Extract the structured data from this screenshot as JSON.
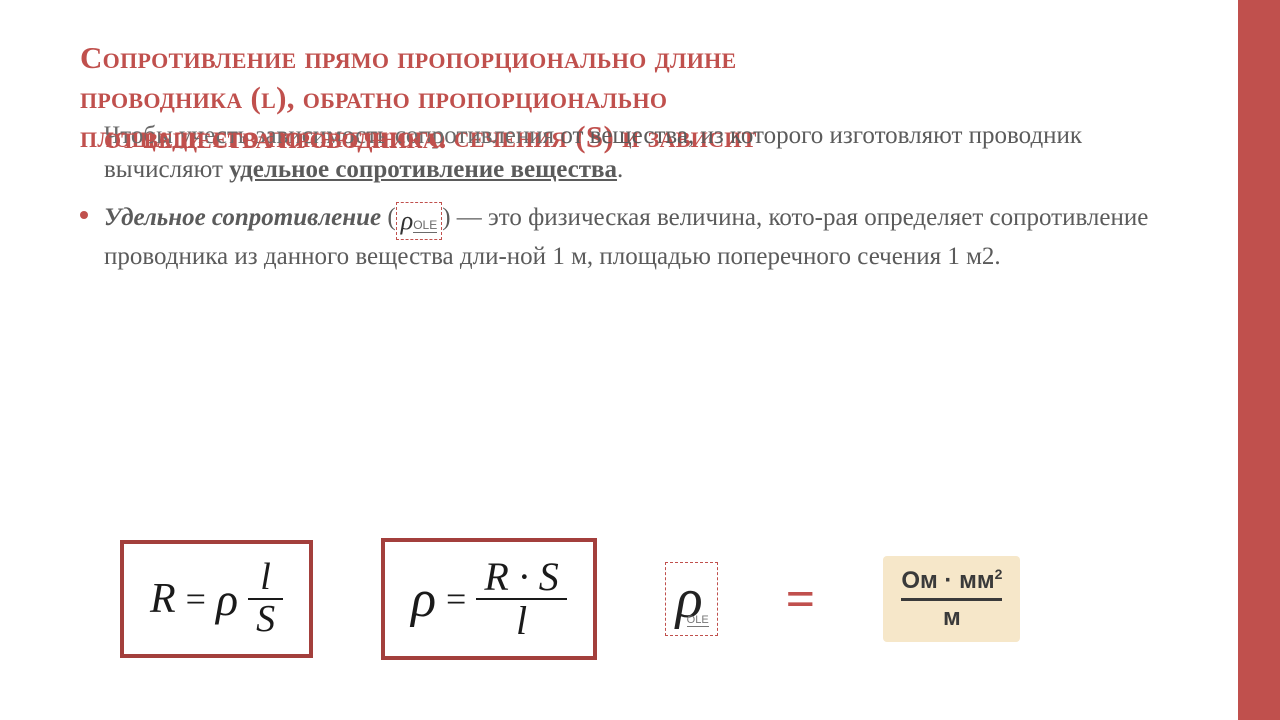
{
  "colors": {
    "accent": "#c0504d",
    "title": "#c0504d",
    "body_text": "#5b5b5b",
    "formula_text": "#1a1a1a",
    "box_border": "#a33f3c",
    "unit_bg": "#f6e7c9",
    "unit_text": "#3a3a3a",
    "background": "#ffffff"
  },
  "typography": {
    "title_fontsize": 31,
    "body_fontsize": 25,
    "formula_fontsize": 42,
    "rho_big_fontsize": 56,
    "font_family": "Georgia / Times New Roman"
  },
  "title": {
    "line1": "Сопротивление прямо пропорционально длине",
    "line2": "проводника (l), обратно пропорционально",
    "line3": "площади его поперечного сечения (S) и зависит",
    "overlap_fragment": "Чтобы учесть зависимость сопротивления",
    "line4_tail": "от вещества, из которого"
  },
  "body": {
    "p1_tail": "изготовляют проводник вычисляют ",
    "p1_underlined": "удельное сопротивление вещества",
    "p1_end": ".",
    "p2_lead": "Удельное сопротивление",
    "p2_paren_open": " (",
    "ole_label": "OLE",
    "p2_paren_close": ") ",
    "p2_rest": "— это физическая величина, кото-рая определяет сопротивление проводника из данного вещества дли-ной 1 м, площадью поперечного сечения 1 м2."
  },
  "formulas": {
    "f1": {
      "lhs": "R",
      "eq": "=",
      "rho": "ρ",
      "num": "l",
      "den": "S"
    },
    "f2": {
      "lhs": "ρ",
      "eq": "=",
      "num": "R · S",
      "den": "l"
    },
    "rho_symbol": "ρ",
    "big_eq": "=",
    "unit": {
      "num_a": "Ом · мм",
      "num_sup": "2",
      "den": "м"
    }
  },
  "layout": {
    "slide_size": [
      1280,
      720
    ],
    "accent_bar_width": 42,
    "box_border_width": 4
  }
}
